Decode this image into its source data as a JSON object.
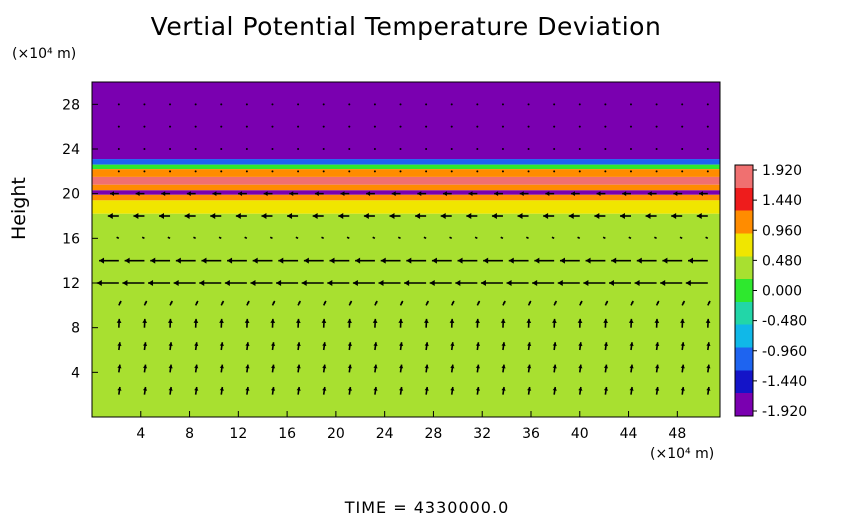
{
  "chart_data": {
    "type": "heatmap",
    "title": "Vertial Potential Temperature Deviation",
    "ylabel": "Height",
    "x_units": "(×10⁴ m)",
    "y_units": "(×10⁴ m)",
    "xlim": [
      0,
      51.5
    ],
    "ylim": [
      0,
      30
    ],
    "x_ticks": [
      4,
      8,
      12,
      16,
      20,
      24,
      28,
      32,
      36,
      40,
      44,
      48
    ],
    "y_ticks": [
      4,
      8,
      12,
      16,
      20,
      24,
      28
    ],
    "colorbar": {
      "ticks": [
        "1.920",
        "1.440",
        "0.960",
        "0.480",
        "0.000",
        "-0.480",
        "-0.960",
        "-1.440",
        "-1.920"
      ],
      "range": [
        -1.92,
        1.92
      ],
      "colors": [
        "#f07070",
        "#ee1c1c",
        "#ff8c00",
        "#f0e600",
        "#a8e030",
        "#2ee82e",
        "#22d6a8",
        "#10b8e8",
        "#1e64f0",
        "#1414c8",
        "#7a00b0"
      ]
    },
    "field_bands": [
      {
        "y": [
          23.1,
          30
        ],
        "value": -1.92
      },
      {
        "y": [
          22.6,
          23.1
        ],
        "value": -1.2
      },
      {
        "y": [
          22.2,
          22.6
        ],
        "value": 0.0
      },
      {
        "y": [
          21.5,
          22.2
        ],
        "value": 0.9
      },
      {
        "y": [
          20.8,
          21.5
        ],
        "value": 1.75
      },
      {
        "y": [
          20.3,
          20.8
        ],
        "value": 0.9
      },
      {
        "y": [
          19.9,
          20.3
        ],
        "value": -1.9
      },
      {
        "y": [
          19.4,
          19.9
        ],
        "value": 0.9
      },
      {
        "y": [
          18.2,
          19.4
        ],
        "value": 0.6
      },
      {
        "y": [
          0,
          18.2
        ],
        "value": 0.3
      }
    ],
    "wind_vectors": {
      "x": [
        2.2,
        4.3,
        6.4,
        8.5,
        10.6,
        12.7,
        14.8,
        16.9,
        19.0,
        21.1,
        23.2,
        25.3,
        27.4,
        29.5,
        31.6,
        33.7,
        35.8,
        37.9,
        40.0,
        42.1,
        44.2,
        46.3,
        48.4,
        50.5
      ],
      "y": [
        2,
        4,
        6,
        8,
        10,
        12,
        14,
        16,
        18,
        20,
        22,
        24,
        26,
        28
      ],
      "u_profile": [
        0.05,
        0.05,
        0.05,
        0.02,
        0.1,
        -1.0,
        -0.9,
        -0.1,
        -0.5,
        -0.4,
        0.0,
        0.0,
        0.0,
        0.0
      ],
      "v_profile": [
        0.35,
        0.35,
        0.35,
        0.4,
        0.2,
        0.0,
        0.0,
        0.05,
        0.0,
        0.0,
        0.0,
        0.0,
        0.0,
        0.0
      ]
    }
  },
  "time_label": "TIME  =  4330000.0"
}
